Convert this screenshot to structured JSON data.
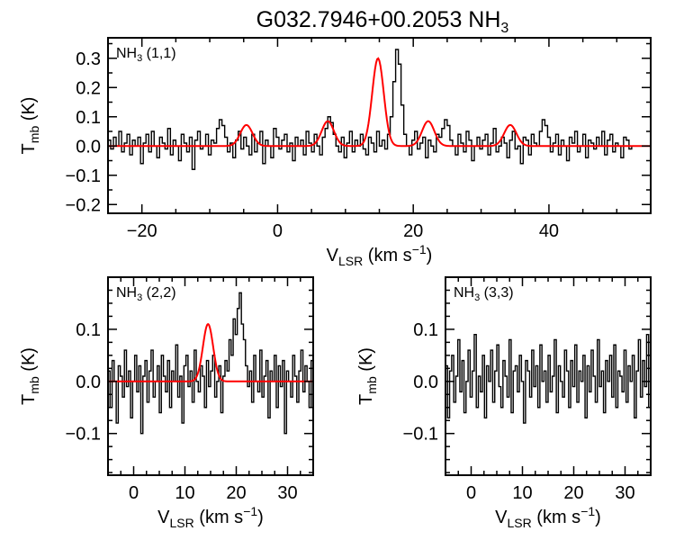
{
  "title": {
    "source": "G032.7946+00.2053 NH",
    "sub": "3"
  },
  "axis_labels": {
    "y_main": "T",
    "y_sub": "mb",
    "y_unit": " (K)",
    "x_main": "V",
    "x_sub": "LSR",
    "x_unit": " (km s",
    "x_exp": "−1",
    "x_close": ")"
  },
  "colors": {
    "spectrum": "#000000",
    "fit": "#ff0000"
  },
  "chart_data": [
    {
      "type": "line",
      "panel": "top",
      "label": {
        "molecule": "NH",
        "sub": "3",
        "transition": " (1,1)"
      },
      "xlim": [
        -25,
        55
      ],
      "ylim": [
        -0.23,
        0.37
      ],
      "xticks": [
        -20,
        0,
        20,
        40
      ],
      "yticks": [
        -0.2,
        -0.1,
        0.0,
        0.1,
        0.2,
        0.3
      ],
      "spectrum": {
        "step": true,
        "x0": -25,
        "dx": 0.4,
        "y": [
          0.02,
          -0.01,
          0.03,
          0.0,
          0.05,
          -0.02,
          0.01,
          0.04,
          -0.03,
          0.02,
          0.0,
          0.03,
          -0.06,
          0.01,
          0.04,
          -0.02,
          0.05,
          0.0,
          -0.04,
          0.03,
          0.01,
          -0.01,
          0.06,
          -0.03,
          0.02,
          0.0,
          -0.05,
          0.04,
          0.01,
          -0.02,
          0.03,
          -0.08,
          0.02,
          0.05,
          -0.01,
          0.0,
          0.04,
          -0.03,
          0.02,
          0.01,
          0.06,
          0.09,
          0.07,
          0.03,
          -0.02,
          0.01,
          -0.04,
          0.02,
          0.05,
          -0.01,
          0.03,
          0.0,
          -0.03,
          0.04,
          -0.02,
          0.01,
          0.05,
          -0.06,
          0.02,
          0.0,
          -0.04,
          0.06,
          0.03,
          -0.01,
          0.02,
          0.04,
          -0.02,
          0.01,
          -0.05,
          0.03,
          0.0,
          0.02,
          -0.03,
          0.05,
          0.01,
          -0.02,
          0.04,
          0.0,
          -0.03,
          0.03,
          0.06,
          0.1,
          0.08,
          0.04,
          0.0,
          -0.02,
          0.03,
          -0.04,
          0.01,
          0.05,
          -0.02,
          0.02,
          0.0,
          0.04,
          -0.01,
          -0.03,
          0.03,
          0.01,
          -0.02,
          0.05,
          0.0,
          0.02,
          -0.01,
          0.04,
          0.1,
          0.22,
          0.33,
          0.28,
          0.14,
          0.04,
          0.0,
          -0.03,
          0.02,
          0.05,
          -0.01,
          0.01,
          0.03,
          -0.04,
          0.02,
          0.0,
          -0.02,
          0.04,
          0.03,
          0.06,
          0.09,
          0.07,
          0.02,
          0.0,
          -0.03,
          0.04,
          0.01,
          -0.02,
          0.05,
          0.02,
          -0.05,
          0.0,
          0.03,
          -0.01,
          0.02,
          0.04,
          -0.03,
          0.01,
          0.06,
          -0.02,
          0.0,
          0.03,
          0.01,
          -0.04,
          0.02,
          0.05,
          -0.01,
          0.0,
          -0.06,
          0.03,
          0.02,
          -0.03,
          0.04,
          0.01,
          0.0,
          0.05,
          0.09,
          0.07,
          0.03,
          -0.02,
          0.01,
          0.04,
          -0.03,
          0.02,
          0.0,
          -0.05,
          0.03,
          0.01,
          0.05,
          -0.02,
          0.0,
          0.04,
          -0.04,
          0.02,
          0.01,
          -0.01,
          0.03,
          0.0,
          0.05,
          -0.03,
          0.02,
          0.04,
          -0.02,
          0.01,
          0.0,
          -0.04,
          0.03,
          0.02,
          -0.01,
          0.0
        ]
      },
      "fit": {
        "components": [
          {
            "center": -4.6,
            "amp": 0.072,
            "sigma": 0.9
          },
          {
            "center": 7.4,
            "amp": 0.085,
            "sigma": 0.9
          },
          {
            "center": 14.8,
            "amp": 0.3,
            "sigma": 0.85
          },
          {
            "center": 22.2,
            "amp": 0.085,
            "sigma": 0.9
          },
          {
            "center": 34.3,
            "amp": 0.072,
            "sigma": 0.9
          }
        ]
      }
    },
    {
      "type": "line",
      "panel": "bottom-left",
      "label": {
        "molecule": "NH",
        "sub": "3",
        "transition": " (2,2)"
      },
      "xlim": [
        -5,
        35
      ],
      "ylim": [
        -0.18,
        0.2
      ],
      "xticks": [
        0,
        10,
        20,
        30
      ],
      "yticks": [
        -0.1,
        0.0,
        0.1
      ],
      "spectrum": {
        "step": true,
        "x0": -5,
        "dx": 0.4,
        "y": [
          0.02,
          -0.05,
          0.04,
          0.0,
          -0.08,
          0.03,
          0.01,
          -0.03,
          0.06,
          -0.01,
          0.02,
          -0.07,
          0.0,
          0.05,
          -0.02,
          0.03,
          -0.1,
          0.01,
          0.04,
          -0.04,
          0.02,
          0.06,
          -0.03,
          0.0,
          0.03,
          -0.06,
          0.05,
          0.01,
          -0.02,
          0.04,
          -0.05,
          0.02,
          0.0,
          0.07,
          -0.03,
          0.01,
          -0.08,
          0.03,
          0.05,
          -0.01,
          0.02,
          -0.04,
          0.06,
          0.0,
          -0.02,
          0.03,
          0.01,
          -0.05,
          0.04,
          -0.01,
          0.02,
          0.05,
          -0.03,
          0.0,
          0.03,
          -0.06,
          0.01,
          0.04,
          0.02,
          0.08,
          0.05,
          0.12,
          0.09,
          0.14,
          0.17,
          0.11,
          0.08,
          0.03,
          -0.01,
          0.02,
          -0.04,
          0.05,
          0.0,
          -0.02,
          0.06,
          -0.03,
          0.01,
          0.04,
          -0.07,
          0.02,
          0.0,
          0.05,
          -0.05,
          0.03,
          -0.01,
          0.04,
          -0.1,
          0.02,
          0.0,
          -0.03,
          0.05,
          0.01,
          -0.04,
          0.02,
          0.06,
          -0.02,
          0.03,
          0.0,
          -0.05,
          0.04
        ]
      },
      "fit": {
        "components": [
          {
            "center": 14.5,
            "amp": 0.11,
            "sigma": 1.0
          }
        ]
      }
    },
    {
      "type": "line",
      "panel": "bottom-right",
      "label": {
        "molecule": "NH",
        "sub": "3",
        "transition": " (3,3)"
      },
      "xlim": [
        -5,
        35
      ],
      "ylim": [
        -0.18,
        0.2
      ],
      "xticks": [
        0,
        10,
        20,
        30
      ],
      "yticks": [
        -0.1,
        0.0,
        0.1
      ],
      "spectrum": {
        "step": true,
        "x0": -5,
        "dx": 0.4,
        "y": [
          0.03,
          -0.07,
          0.02,
          0.05,
          -0.04,
          0.01,
          0.08,
          -0.02,
          0.04,
          -0.06,
          0.0,
          0.06,
          -0.03,
          0.02,
          0.09,
          -0.05,
          0.01,
          -0.02,
          0.05,
          -0.07,
          0.03,
          0.0,
          0.06,
          -0.04,
          0.02,
          0.07,
          -0.01,
          -0.05,
          0.04,
          0.01,
          -0.03,
          0.08,
          -0.06,
          0.02,
          0.03,
          -0.02,
          0.05,
          0.0,
          -0.08,
          0.04,
          0.02,
          -0.03,
          0.06,
          -0.01,
          0.03,
          -0.05,
          0.07,
          0.0,
          0.02,
          -0.04,
          0.05,
          -0.02,
          0.01,
          0.08,
          -0.06,
          0.03,
          0.0,
          -0.03,
          0.06,
          0.02,
          -0.05,
          0.04,
          -0.01,
          0.07,
          -0.04,
          0.02,
          0.0,
          0.05,
          -0.07,
          0.03,
          -0.02,
          0.06,
          0.01,
          -0.04,
          0.08,
          -0.01,
          0.02,
          -0.06,
          0.04,
          0.0,
          0.05,
          -0.03,
          0.07,
          -0.05,
          0.02,
          0.01,
          -0.02,
          0.06,
          -0.04,
          0.03,
          0.0,
          0.05,
          -0.07,
          0.02,
          0.08,
          -0.03,
          0.04,
          -0.01,
          0.09,
          -0.05
        ]
      }
    }
  ]
}
